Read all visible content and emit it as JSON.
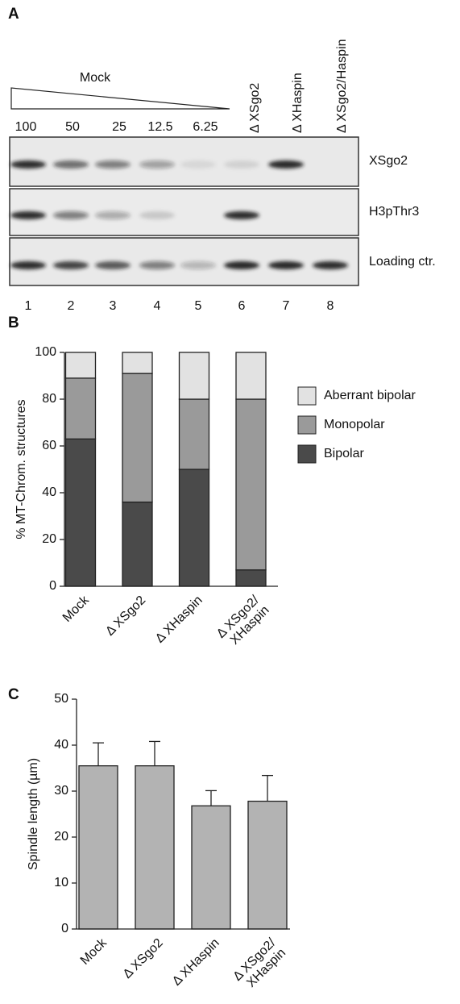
{
  "blot": {
    "panel_label": "A",
    "wedge_label": "Mock",
    "amounts": [
      "100",
      "50",
      "25",
      "12.5",
      "6.25"
    ],
    "depletions": [
      "Δ XSgo2",
      "Δ XHaspin",
      "Δ XSgo2/Haspin"
    ],
    "rows": [
      "XSgo2",
      "H3pThr3",
      "Loading ctr."
    ],
    "lanes": [
      "1",
      "2",
      "3",
      "4",
      "5",
      "6",
      "7",
      "8"
    ]
  },
  "chart_data": [
    {
      "type": "stacked_bar",
      "panel_label": "B",
      "y_label": "% MT-Chrom. structures",
      "categories": [
        "Mock",
        "Δ XSgo2",
        "Δ XHaspin",
        "Δ XSgo2/\nXHaspin"
      ],
      "series": [
        {
          "name": "Bipolar",
          "color": "#4a4a4a",
          "values": [
            63,
            36,
            50,
            7
          ]
        },
        {
          "name": "Monopolar",
          "color": "#9a9a9a",
          "values": [
            26,
            55,
            30,
            73
          ]
        },
        {
          "name": "Aberrant bipolar",
          "color": "#e2e2e2",
          "values": [
            11,
            9,
            20,
            20
          ]
        }
      ],
      "ylim": [
        0,
        100
      ],
      "yticks": [
        0,
        20,
        40,
        60,
        80,
        100
      ],
      "legend": "right"
    },
    {
      "type": "bar",
      "panel_label": "C",
      "y_label": "Spindle length (µm)",
      "categories": [
        "Mock",
        "Δ XSgo2",
        "Δ XHaspin",
        "Δ XSgo2/\nXHaspin"
      ],
      "values": [
        35.5,
        35.5,
        26.8,
        27.8
      ],
      "errors": [
        5,
        5.3,
        3.3,
        5.6
      ],
      "color": "#b3b3b3",
      "ylim": [
        0,
        50
      ],
      "yticks": [
        0,
        10,
        20,
        30,
        40,
        50
      ]
    }
  ]
}
